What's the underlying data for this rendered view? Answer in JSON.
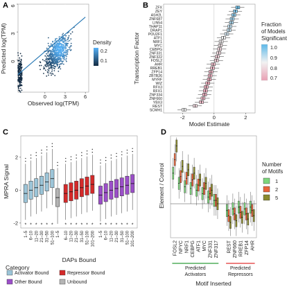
{
  "panels": {
    "a": "A",
    "b": "B",
    "c": "C",
    "d": "D"
  },
  "chart_data": [
    {
      "panel": "A",
      "type": "scatter",
      "subtype": "density",
      "xlabel": "Observed log(TPM)",
      "ylabel": "Predicted log(TPM)",
      "xlim": [
        -4,
        6.5
      ],
      "ylim": [
        -3.5,
        6
      ],
      "x_ticks": [
        0,
        3,
        6
      ],
      "y_ticks": [
        0,
        3,
        6
      ],
      "fit_line": {
        "x": [
          -4,
          6
        ],
        "y": [
          -1.6,
          4.6
        ]
      },
      "legend": {
        "title": "Density",
        "labels": [
          "0.2",
          "0.1"
        ],
        "colors": [
          "#56B1F7",
          "#132B43"
        ],
        "position": "right"
      }
    },
    {
      "panel": "B",
      "type": "boxplot",
      "orientation": "horizontal",
      "xlabel": "Model Estimate",
      "ylabel": "Transcription Factor",
      "xlim": [
        -3.2,
        2.6
      ],
      "x_ticks": [
        -2,
        0,
        2
      ],
      "categories": [
        "ZFX",
        "ZEY",
        "ASH2L",
        "ZNF687",
        "LIN54",
        "THAP11",
        "DRAP1",
        "POU2F1",
        "ATF1",
        "NRF1",
        "MYC",
        "CEBPG",
        "ZNF331",
        "ZNF322",
        "FOSL2",
        "AHR",
        "RREB1",
        "ZFP14",
        "ZBTB26",
        "MYRF",
        "WIZ",
        "RFX3",
        "RFX1",
        "ZNF334",
        "ZNF660",
        "YBX3",
        "REST",
        "SCMH1"
      ],
      "medians": [
        1.5,
        1.35,
        1.25,
        1.15,
        1.1,
        1.0,
        0.95,
        0.8,
        0.6,
        0.45,
        0.4,
        0.35,
        0.3,
        0.2,
        0.15,
        -0.05,
        -0.1,
        -0.2,
        -0.25,
        -0.3,
        -0.4,
        -0.5,
        -0.55,
        -0.6,
        -0.7,
        -0.8,
        -1.2,
        -1.9
      ],
      "fraction_significant": [
        0.98,
        0.96,
        0.95,
        0.93,
        0.92,
        0.9,
        0.9,
        0.88,
        0.85,
        0.84,
        0.82,
        0.8,
        0.8,
        0.78,
        0.78,
        0.75,
        0.74,
        0.74,
        0.73,
        0.72,
        0.72,
        0.72,
        0.72,
        0.73,
        0.74,
        0.75,
        0.8,
        0.85
      ],
      "legend": {
        "title": "Fraction of Models Significant",
        "labels": [
          "1.0",
          "0.9",
          "0.8",
          "0.7"
        ],
        "colors": [
          "#5BB8E8",
          "#F2F2F2",
          "#E9A0B3"
        ]
      }
    },
    {
      "panel": "C",
      "type": "boxplot",
      "xlabel": "DAPs Bound",
      "ylabel": "MPRA Signal",
      "ylim": [
        -2.3,
        3.3
      ],
      "y_ticks": [
        -2,
        0,
        2
      ],
      "groups": [
        {
          "name": "Activator Bound",
          "color": "#9CC5D8",
          "categories": [
            "1–5",
            "6–10",
            "11–20",
            "21–30",
            "31–50",
            "51–100"
          ],
          "medians": [
            -0.2,
            0.0,
            0.15,
            0.3,
            0.5,
            0.7
          ]
        },
        {
          "name": "Unbound",
          "color": "#B5B5B5",
          "categories": [
            "1–5"
          ],
          "medians": [
            -0.45
          ]
        },
        {
          "name": "Repressor Bound",
          "color": "#D42A2A",
          "categories": [
            "6–10",
            "11–20",
            "21–30",
            "31–50",
            "51–100",
            "101–200"
          ],
          "medians": [
            -0.2,
            -0.1,
            0.0,
            0.15,
            0.25,
            0.35
          ]
        },
        {
          "name": "Other Bound",
          "color": "#9B4FC8",
          "categories": [
            "1–5",
            "6–10",
            "11–20",
            "21–30",
            "31–50",
            "51–100",
            "101–200"
          ],
          "medians": [
            -0.3,
            -0.15,
            0.0,
            0.1,
            0.2,
            0.3,
            0.4
          ]
        }
      ],
      "legend": {
        "title": "Category",
        "labels": [
          "Activator Bound",
          "Repressor Bound",
          "Other Bound",
          "Unbound"
        ],
        "position": "bottom"
      }
    },
    {
      "panel": "D",
      "type": "boxplot",
      "xlabel": "Motif Inserted",
      "ylabel": "Element / Control",
      "ylim": [
        0.0,
        3.0
      ],
      "reference_line": 1.0,
      "categories": [
        "FOSL2",
        "NFYC",
        "NRF1",
        "CEBPG",
        "ATF1",
        "MYC",
        "ZNF331",
        "ZNF317",
        "REST",
        "ZNF660",
        "RREB1",
        "ZFP14",
        "AHR"
      ],
      "groups": [
        {
          "label": "Predicted Activators",
          "members": [
            "FOSL2",
            "NFYC",
            "NRF1",
            "CEBPG",
            "ATF1",
            "MYC",
            "ZNF331",
            "ZNF317"
          ],
          "underline_color": "#2E9E3A"
        },
        {
          "label": "Predicted Repressors",
          "members": [
            "REST",
            "ZNF660",
            "RREB1",
            "ZFP14",
            "AHR"
          ],
          "underline_color": "#E03030"
        }
      ],
      "series": [
        {
          "name": "1",
          "color": "#7CD67C",
          "medians": [
            1.9,
            1.6,
            1.5,
            1.45,
            1.4,
            1.3,
            1.2,
            1.1,
            0.8,
            0.85,
            0.9,
            0.85,
            0.9
          ]
        },
        {
          "name": "2",
          "color": "#E8643A",
          "medians": [
            2.3,
            1.8,
            1.75,
            1.7,
            1.55,
            1.45,
            1.3,
            1.1,
            0.65,
            0.7,
            0.75,
            0.7,
            0.8
          ]
        },
        {
          "name": "5",
          "color": "#8A8A2E",
          "medians": [
            2.7,
            2.1,
            2.0,
            1.9,
            1.7,
            1.6,
            1.4,
            1.0,
            0.45,
            0.5,
            0.6,
            0.55,
            0.65
          ]
        }
      ],
      "legend": {
        "title": "Number of Motifs",
        "labels": [
          "1",
          "2",
          "5"
        ],
        "position": "right"
      }
    }
  ]
}
